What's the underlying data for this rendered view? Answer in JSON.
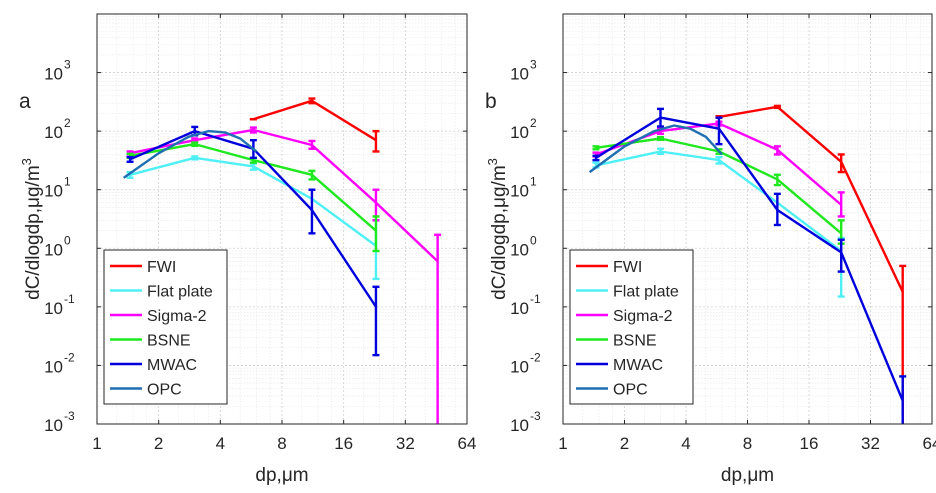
{
  "chart_data": [
    {
      "type": "line",
      "panel_label": "a",
      "xlabel": "dp,μm",
      "ylabel_main": "dC/dlogdp,μg/m",
      "ylabel_sup": "3",
      "x_scale": "log2",
      "y_scale": "log10",
      "xlim": [
        1,
        64
      ],
      "ylim": [
        0.001,
        10000
      ],
      "x_ticks": [
        1,
        2,
        4,
        8,
        16,
        32,
        64
      ],
      "y_ticks": [
        0.001,
        0.01,
        0.1,
        1,
        10,
        100,
        1000
      ],
      "y_tick_labels": [
        {
          "base": "10",
          "exp": "-3"
        },
        {
          "base": "10",
          "exp": "-2"
        },
        {
          "base": "10",
          "exp": "-1"
        },
        {
          "base": "10",
          "exp": "0"
        },
        {
          "base": "10",
          "exp": "1"
        },
        {
          "base": "10",
          "exp": "2"
        },
        {
          "base": "10",
          "exp": "3"
        }
      ],
      "grid": true,
      "legend_position": "bottom-left",
      "series": [
        {
          "name": "FWI",
          "color": "#ff0000",
          "x": [
            5.8,
            11.2,
            23
          ],
          "y": [
            160,
            330,
            70
          ],
          "err": [
            [
              160,
              160
            ],
            [
              300,
              360
            ],
            [
              45,
              100
            ]
          ]
        },
        {
          "name": "Flat plate",
          "color": "#4ef0f5",
          "x": [
            1.45,
            3,
            5.8,
            11.2,
            23
          ],
          "y": [
            18,
            35,
            25,
            7,
            1.1
          ],
          "err": [
            [
              16,
              20
            ],
            [
              33,
              37
            ],
            [
              22,
              28
            ],
            null,
            [
              0.3,
              3
            ]
          ]
        },
        {
          "name": "Sigma-2",
          "color": "#ff00ff",
          "x": [
            1.45,
            3,
            5.8,
            11.2,
            23,
            46
          ],
          "y": [
            42,
            70,
            105,
            58,
            6,
            0.6
          ],
          "err": [
            [
              40,
              45
            ],
            [
              65,
              75
            ],
            [
              95,
              115
            ],
            [
              50,
              68
            ],
            [
              3,
              10
            ],
            [
              0.001,
              1.7
            ]
          ]
        },
        {
          "name": "BSNE",
          "color": "#1fe81f",
          "x": [
            1.45,
            3,
            5.8,
            11.2,
            23
          ],
          "y": [
            38,
            60,
            32,
            18,
            2
          ],
          "err": [
            [
              35,
              41
            ],
            [
              56,
              64
            ],
            [
              29,
              35
            ],
            [
              15,
              21
            ],
            [
              0.9,
              3.5
            ]
          ]
        },
        {
          "name": "MWAC",
          "color": "#0000dd",
          "x": [
            1.45,
            3,
            5.8,
            11.2,
            23
          ],
          "y": [
            33,
            100,
            50,
            4.5,
            0.1
          ],
          "err": [
            [
              30,
              36
            ],
            [
              85,
              118
            ],
            [
              35,
              70
            ],
            [
              1.8,
              10
            ],
            [
              0.015,
              0.22
            ]
          ]
        },
        {
          "name": "OPC",
          "color": "#1f6fb2",
          "x": [
            1.35,
            2,
            2.8,
            3.5,
            4.2,
            5,
            6
          ],
          "y": [
            16,
            42,
            80,
            100,
            95,
            75,
            45
          ],
          "err": null
        }
      ]
    },
    {
      "type": "line",
      "panel_label": "b",
      "xlabel": "dp,μm",
      "ylabel_main": "dC/dlogdp,μg/m",
      "ylabel_sup": "3",
      "x_scale": "log2",
      "y_scale": "log10",
      "xlim": [
        1,
        64
      ],
      "ylim": [
        0.001,
        10000
      ],
      "x_ticks": [
        1,
        2,
        4,
        8,
        16,
        32,
        64
      ],
      "y_ticks": [
        0.001,
        0.01,
        0.1,
        1,
        10,
        100,
        1000
      ],
      "y_tick_labels": [
        {
          "base": "10",
          "exp": "-3"
        },
        {
          "base": "10",
          "exp": "-2"
        },
        {
          "base": "10",
          "exp": "-1"
        },
        {
          "base": "10",
          "exp": "0"
        },
        {
          "base": "10",
          "exp": "1"
        },
        {
          "base": "10",
          "exp": "2"
        },
        {
          "base": "10",
          "exp": "3"
        }
      ],
      "grid": true,
      "legend_position": "bottom-left",
      "series": [
        {
          "name": "FWI",
          "color": "#ff0000",
          "x": [
            5.8,
            11.2,
            23,
            46
          ],
          "y": [
            175,
            260,
            30,
            0.18
          ],
          "err": [
            [
              170,
              180
            ],
            [
              250,
              270
            ],
            [
              20,
              40
            ],
            [
              0.001,
              0.5
            ]
          ]
        },
        {
          "name": "Flat plate",
          "color": "#4ef0f5",
          "x": [
            1.45,
            3,
            5.8,
            11.2,
            23
          ],
          "y": [
            26,
            45,
            32,
            6,
            0.9
          ],
          "err": [
            [
              24,
              29
            ],
            [
              41,
              50
            ],
            [
              28,
              36
            ],
            null,
            [
              0.15,
              1.5
            ]
          ]
        },
        {
          "name": "Sigma-2",
          "color": "#ff00ff",
          "x": [
            1.45,
            3,
            5.8,
            11.2,
            23
          ],
          "y": [
            40,
            100,
            135,
            48,
            5.5
          ],
          "err": [
            [
              37,
              43
            ],
            [
              90,
              110
            ],
            [
              125,
              145
            ],
            [
              40,
              55
            ],
            [
              3.5,
              9
            ]
          ]
        },
        {
          "name": "BSNE",
          "color": "#1fe81f",
          "x": [
            1.45,
            3,
            5.8,
            11.2,
            23
          ],
          "y": [
            52,
            75,
            45,
            15,
            1.8
          ],
          "err": [
            [
              49,
              55
            ],
            [
              71,
              79
            ],
            [
              41,
              49
            ],
            [
              12,
              18
            ],
            [
              1.2,
              3
            ]
          ]
        },
        {
          "name": "MWAC",
          "color": "#0000dd",
          "x": [
            1.45,
            3,
            5.8,
            11.2,
            23,
            46
          ],
          "y": [
            35,
            170,
            110,
            4.5,
            0.85,
            0.0025
          ],
          "err": [
            [
              32,
              38
            ],
            [
              120,
              240
            ],
            [
              60,
              170
            ],
            [
              2.5,
              8.5
            ],
            [
              0.4,
              1.4
            ],
            [
              0.001,
              0.0065
            ]
          ]
        },
        {
          "name": "OPC",
          "color": "#1f6fb2",
          "x": [
            1.35,
            2,
            2.8,
            3.5,
            4.2,
            5,
            6
          ],
          "y": [
            20,
            55,
            100,
            125,
            110,
            80,
            40
          ],
          "err": null
        }
      ]
    }
  ]
}
